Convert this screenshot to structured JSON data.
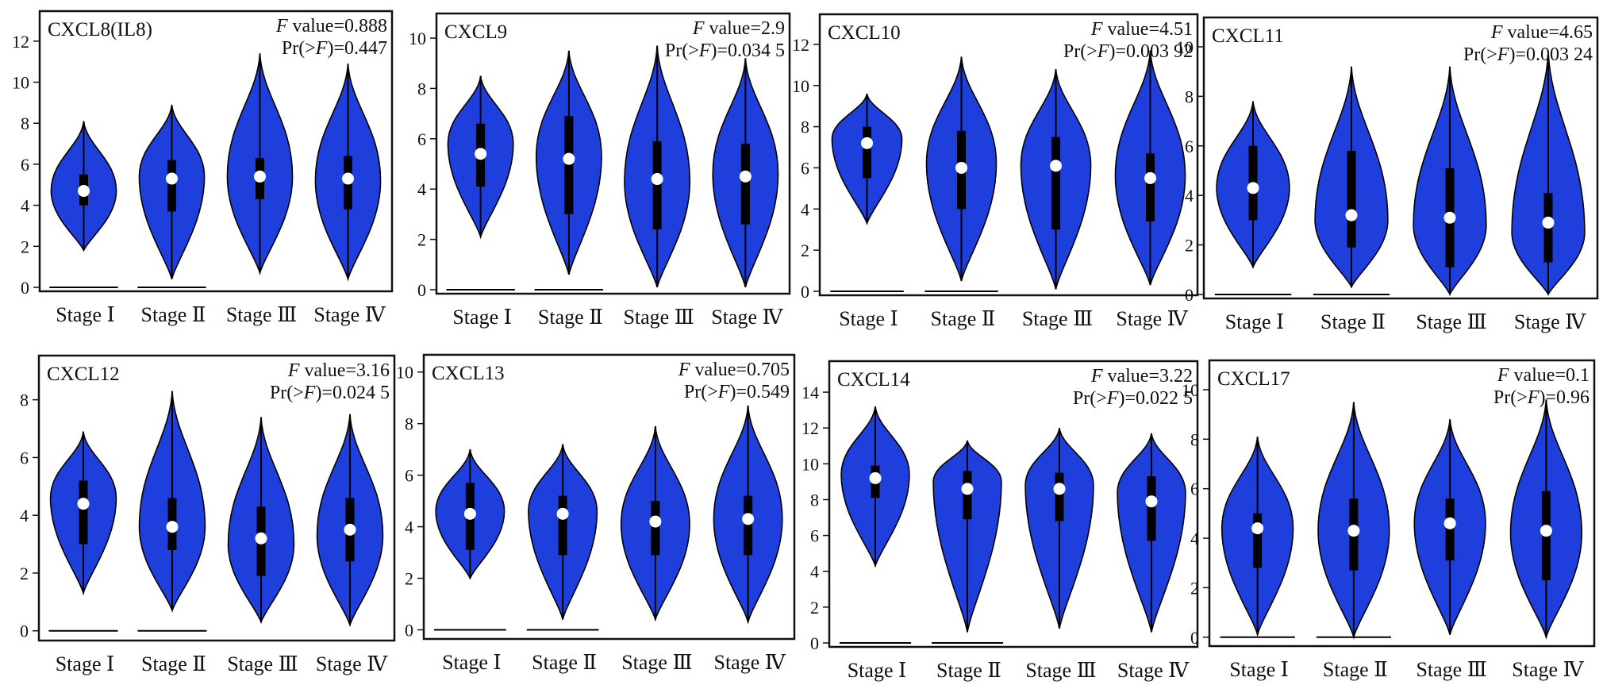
{
  "figure": {
    "categories": [
      "Stage Ⅰ",
      "Stage Ⅱ",
      "Stage Ⅲ",
      "Stage Ⅳ"
    ],
    "colors": {
      "violin_fill": "#1f3fdc",
      "outline": "#000000",
      "median_dot": "#ffffff",
      "frame": "#111111"
    }
  },
  "chart_data": [
    {
      "type": "violin",
      "title": "CXCL8(IL8)",
      "f_label": "F",
      "f_value": "value=0.888",
      "pr_prefix": "Pr(>",
      "pr_var": "F",
      "pr_value": ")=0.447",
      "ylim": [
        0,
        13
      ],
      "yticks": [
        0,
        2,
        4,
        6,
        8,
        10,
        12
      ],
      "series": [
        {
          "category": "Stage Ⅰ",
          "min": 1.8,
          "max": 8.1,
          "q1": 4.0,
          "q3": 5.5,
          "median": 4.7,
          "mode": 4.7,
          "flat_at_zero": true
        },
        {
          "category": "Stage Ⅱ",
          "min": 0.4,
          "max": 8.9,
          "q1": 3.7,
          "q3": 6.2,
          "median": 5.3,
          "mode": 5.4,
          "flat_at_zero": true
        },
        {
          "category": "Stage Ⅲ",
          "min": 0.7,
          "max": 11.4,
          "q1": 4.3,
          "q3": 6.3,
          "median": 5.4,
          "mode": 5.4,
          "flat_at_zero": false
        },
        {
          "category": "Stage Ⅳ",
          "min": 0.4,
          "max": 10.9,
          "q1": 3.8,
          "q3": 6.4,
          "median": 5.3,
          "mode": 5.2,
          "flat_at_zero": false
        }
      ]
    },
    {
      "type": "violin",
      "title": "CXCL9",
      "f_label": "F",
      "f_value": "value=2.9",
      "pr_prefix": "Pr(>",
      "pr_var": "F",
      "pr_value": ")=0.034 5",
      "ylim": [
        0,
        10.6
      ],
      "yticks": [
        0,
        2,
        4,
        6,
        8,
        10
      ],
      "series": [
        {
          "category": "Stage Ⅰ",
          "min": 2.1,
          "max": 8.5,
          "q1": 4.1,
          "q3": 6.6,
          "median": 5.4,
          "mode": 5.8,
          "flat_at_zero": true
        },
        {
          "category": "Stage Ⅱ",
          "min": 0.6,
          "max": 9.5,
          "q1": 3.0,
          "q3": 6.9,
          "median": 5.2,
          "mode": 5.3,
          "flat_at_zero": true
        },
        {
          "category": "Stage Ⅲ",
          "min": 0.1,
          "max": 9.7,
          "q1": 2.4,
          "q3": 5.9,
          "median": 4.4,
          "mode": 4.3,
          "flat_at_zero": false
        },
        {
          "category": "Stage Ⅳ",
          "min": 0.1,
          "max": 9.2,
          "q1": 2.6,
          "q3": 5.8,
          "median": 4.5,
          "mode": 4.6,
          "flat_at_zero": false
        }
      ]
    },
    {
      "type": "violin",
      "title": "CXCL10",
      "f_label": "F",
      "f_value": "value=4.51",
      "pr_prefix": "Pr(>",
      "pr_var": "F",
      "pr_value": ")=0.003 92",
      "ylim": [
        0,
        13
      ],
      "yticks": [
        0,
        2,
        4,
        6,
        8,
        10,
        12
      ],
      "series": [
        {
          "category": "Stage Ⅰ",
          "min": 3.3,
          "max": 9.6,
          "q1": 5.5,
          "q3": 8.0,
          "median": 7.2,
          "mode": 7.4,
          "flat_at_zero": true
        },
        {
          "category": "Stage Ⅱ",
          "min": 0.5,
          "max": 11.4,
          "q1": 4.0,
          "q3": 7.8,
          "median": 6.0,
          "mode": 6.2,
          "flat_at_zero": true
        },
        {
          "category": "Stage Ⅲ",
          "min": 0.1,
          "max": 10.8,
          "q1": 3.0,
          "q3": 7.5,
          "median": 6.1,
          "mode": 6.1,
          "flat_at_zero": false
        },
        {
          "category": "Stage Ⅳ",
          "min": 0.3,
          "max": 11.7,
          "q1": 3.4,
          "q3": 6.7,
          "median": 5.5,
          "mode": 5.6,
          "flat_at_zero": false
        }
      ]
    },
    {
      "type": "violin",
      "title": "CXCL11",
      "f_label": "F",
      "f_value": "value=4.65",
      "pr_prefix": "Pr(>",
      "pr_var": "F",
      "pr_value": ")=0.003 24",
      "ylim": [
        0,
        10.8
      ],
      "yticks": [
        0,
        2,
        4,
        6,
        8,
        10
      ],
      "series": [
        {
          "category": "Stage Ⅰ",
          "min": 1.1,
          "max": 7.8,
          "q1": 3.0,
          "q3": 6.0,
          "median": 4.3,
          "mode": 4.3,
          "flat_at_zero": true
        },
        {
          "category": "Stage Ⅱ",
          "min": 0.3,
          "max": 9.2,
          "q1": 1.9,
          "q3": 5.8,
          "median": 3.2,
          "mode": 3.0,
          "flat_at_zero": true
        },
        {
          "category": "Stage Ⅲ",
          "min": 0.0,
          "max": 9.2,
          "q1": 1.1,
          "q3": 5.1,
          "median": 3.1,
          "mode": 2.8,
          "flat_at_zero": false
        },
        {
          "category": "Stage Ⅳ",
          "min": 0.0,
          "max": 9.8,
          "q1": 1.3,
          "q3": 4.1,
          "median": 2.9,
          "mode": 2.5,
          "flat_at_zero": false
        }
      ]
    },
    {
      "type": "violin",
      "title": "CXCL12",
      "f_label": "F",
      "f_value": "value=3.16",
      "pr_prefix": "Pr(>",
      "pr_var": "F",
      "pr_value": ")=0.024 5",
      "ylim": [
        -0.2,
        9.2
      ],
      "yticks": [
        0,
        2,
        4,
        6,
        8
      ],
      "series": [
        {
          "category": "Stage Ⅰ",
          "min": 1.3,
          "max": 6.9,
          "q1": 3.0,
          "q3": 5.2,
          "median": 4.4,
          "mode": 4.6,
          "flat_at_zero": true
        },
        {
          "category": "Stage Ⅱ",
          "min": 0.7,
          "max": 8.3,
          "q1": 2.8,
          "q3": 4.6,
          "median": 3.6,
          "mode": 3.6,
          "flat_at_zero": true
        },
        {
          "category": "Stage Ⅲ",
          "min": 0.3,
          "max": 7.4,
          "q1": 1.9,
          "q3": 4.3,
          "median": 3.2,
          "mode": 3.0,
          "flat_at_zero": false
        },
        {
          "category": "Stage Ⅳ",
          "min": 0.2,
          "max": 7.5,
          "q1": 2.4,
          "q3": 4.6,
          "median": 3.5,
          "mode": 3.3,
          "flat_at_zero": false
        }
      ]
    },
    {
      "type": "violin",
      "title": "CXCL13",
      "f_label": "F",
      "f_value": "value=0.705",
      "pr_prefix": "Pr(>",
      "pr_var": "F",
      "pr_value": ")=0.549",
      "ylim": [
        -0.2,
        10.3
      ],
      "yticks": [
        0,
        2,
        4,
        6,
        8,
        10
      ],
      "series": [
        {
          "category": "Stage Ⅰ",
          "min": 2.0,
          "max": 7.0,
          "q1": 3.1,
          "q3": 5.7,
          "median": 4.5,
          "mode": 4.6,
          "flat_at_zero": true
        },
        {
          "category": "Stage Ⅱ",
          "min": 0.4,
          "max": 7.2,
          "q1": 2.9,
          "q3": 5.2,
          "median": 4.5,
          "mode": 4.6,
          "flat_at_zero": true
        },
        {
          "category": "Stage Ⅲ",
          "min": 0.4,
          "max": 7.9,
          "q1": 2.9,
          "q3": 5.0,
          "median": 4.2,
          "mode": 4.1,
          "flat_at_zero": false
        },
        {
          "category": "Stage Ⅳ",
          "min": 0.3,
          "max": 8.7,
          "q1": 2.9,
          "q3": 5.2,
          "median": 4.3,
          "mode": 4.3,
          "flat_at_zero": false
        }
      ]
    },
    {
      "type": "violin",
      "title": "CXCL14",
      "f_label": "F",
      "f_value": "value=3.22",
      "pr_prefix": "Pr(>",
      "pr_var": "F",
      "pr_value": ")=0.022 5",
      "ylim": [
        0,
        15.2
      ],
      "yticks": [
        0,
        2,
        4,
        6,
        8,
        10,
        12,
        14
      ],
      "series": [
        {
          "category": "Stage Ⅰ",
          "min": 4.3,
          "max": 13.2,
          "q1": 8.1,
          "q3": 9.9,
          "median": 9.2,
          "mode": 9.4,
          "flat_at_zero": true
        },
        {
          "category": "Stage Ⅱ",
          "min": 0.6,
          "max": 11.3,
          "q1": 6.9,
          "q3": 9.6,
          "median": 8.6,
          "mode": 9.0,
          "flat_at_zero": true
        },
        {
          "category": "Stage Ⅲ",
          "min": 0.8,
          "max": 12.0,
          "q1": 6.8,
          "q3": 9.5,
          "median": 8.6,
          "mode": 8.8,
          "flat_at_zero": false
        },
        {
          "category": "Stage Ⅳ",
          "min": 0.6,
          "max": 11.7,
          "q1": 5.7,
          "q3": 9.3,
          "median": 7.9,
          "mode": 8.4,
          "flat_at_zero": false
        }
      ]
    },
    {
      "type": "violin",
      "title": "CXCL17",
      "f_label": "F",
      "f_value": "value=0.1",
      "pr_prefix": "Pr(>",
      "pr_var": "F",
      "pr_value": ")=0.96",
      "ylim": [
        -0.2,
        10.8
      ],
      "yticks": [
        0,
        2,
        4,
        6,
        8,
        10
      ],
      "series": [
        {
          "category": "Stage Ⅰ",
          "min": 0.1,
          "max": 8.1,
          "q1": 2.8,
          "q3": 5.0,
          "median": 4.4,
          "mode": 4.4,
          "flat_at_zero": true
        },
        {
          "category": "Stage Ⅱ",
          "min": 0.0,
          "max": 9.5,
          "q1": 2.7,
          "q3": 5.6,
          "median": 4.3,
          "mode": 4.3,
          "flat_at_zero": true
        },
        {
          "category": "Stage Ⅲ",
          "min": 0.1,
          "max": 8.8,
          "q1": 3.1,
          "q3": 5.6,
          "median": 4.6,
          "mode": 4.6,
          "flat_at_zero": false
        },
        {
          "category": "Stage Ⅳ",
          "min": 0.0,
          "max": 9.6,
          "q1": 2.3,
          "q3": 5.9,
          "median": 4.3,
          "mode": 4.2,
          "flat_at_zero": false
        }
      ]
    }
  ]
}
